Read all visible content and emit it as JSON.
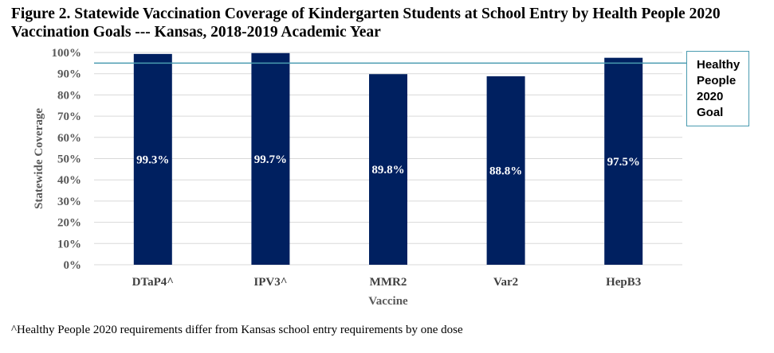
{
  "chart_data": {
    "type": "bar",
    "title": "Figure 2. Statewide Vaccination Coverage of Kindergarten Students at School Entry by Health People 2020 Vaccination Goals --- Kansas, 2018-2019 Academic Year",
    "xlabel": "Vaccine",
    "ylabel": "Statewide Coverage",
    "categories": [
      "DTaP4^",
      "IPV3^",
      "MMR2",
      "Var2",
      "HepB3"
    ],
    "values": [
      99.3,
      99.7,
      89.8,
      88.8,
      97.5
    ],
    "data_labels": [
      "99.3%",
      "99.7%",
      "89.8%",
      "88.8%",
      "97.5%"
    ],
    "ylim": [
      0,
      100
    ],
    "yticks": [
      0,
      10,
      20,
      30,
      40,
      50,
      60,
      70,
      80,
      90,
      100
    ],
    "ytick_labels": [
      "0%",
      "10%",
      "20%",
      "30%",
      "40%",
      "50%",
      "60%",
      "70%",
      "80%",
      "90%",
      "100%"
    ],
    "grid": true,
    "goal_value": 95,
    "goal_label_lines": [
      "Healthy",
      "People",
      "2020",
      "Goal"
    ],
    "colors": {
      "bar": "#002060",
      "goal_line": "#4a9bb0",
      "grid": "#d9d9d9"
    }
  },
  "footnote": "^Healthy People 2020 requirements differ from Kansas school entry requirements by one dose"
}
